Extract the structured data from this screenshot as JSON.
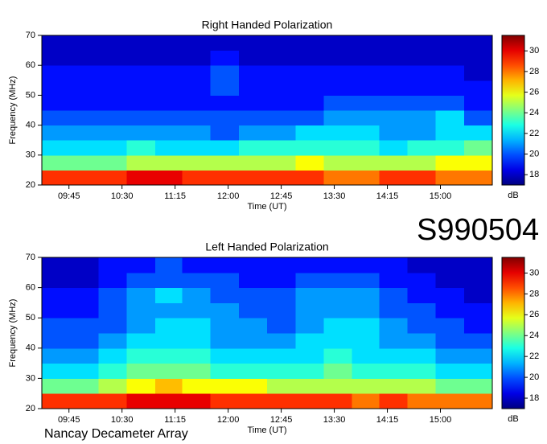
{
  "chart_data": [
    {
      "type": "heatmap",
      "title": "Right Handed Polarization",
      "x_label": "Time (UT)",
      "y_label": "Frequency (MHz)",
      "colorbar_label": "dB",
      "xlim": [
        562,
        944
      ],
      "xticks": [
        {
          "value": 585,
          "label": "09:45"
        },
        {
          "value": 630,
          "label": "10:30"
        },
        {
          "value": 675,
          "label": "11:15"
        },
        {
          "value": 720,
          "label": "12:00"
        },
        {
          "value": 765,
          "label": "12:45"
        },
        {
          "value": 810,
          "label": "13:30"
        },
        {
          "value": 855,
          "label": "14:15"
        },
        {
          "value": 900,
          "label": "15:00"
        }
      ],
      "ylim": [
        20,
        70
      ],
      "yticks": [
        20,
        30,
        40,
        50,
        60,
        70
      ],
      "zlim": [
        17,
        31.5
      ],
      "zticks": [
        18,
        20,
        22,
        24,
        26,
        28,
        30
      ],
      "colormap": "jet",
      "x": [
        574,
        598,
        622,
        646,
        670,
        693,
        717,
        741,
        765,
        789,
        813,
        837,
        860,
        884,
        908,
        932
      ],
      "y": [
        22.5,
        27.5,
        32.5,
        37.5,
        42.5,
        47.5,
        52.5,
        57.5,
        62.5,
        67.5
      ],
      "z": [
        [
          29,
          29,
          29,
          30,
          30,
          29,
          29,
          29,
          29,
          29,
          28,
          28,
          29,
          29,
          28,
          28
        ],
        [
          24,
          24,
          24,
          25,
          25,
          25,
          25,
          25,
          25,
          26,
          25,
          25,
          25,
          25,
          26,
          26
        ],
        [
          22,
          22,
          22,
          23,
          22,
          22,
          22,
          23,
          23,
          23,
          23,
          23,
          22,
          23,
          23,
          24
        ],
        [
          21,
          21,
          21,
          21,
          21,
          21,
          20,
          21,
          21,
          22,
          22,
          22,
          21,
          21,
          22,
          22
        ],
        [
          20,
          20,
          20,
          20,
          20,
          20,
          20,
          20,
          20,
          20,
          21,
          21,
          21,
          21,
          22,
          20
        ],
        [
          19,
          19,
          19,
          19,
          19,
          19,
          19,
          19,
          19,
          19,
          20,
          20,
          20,
          20,
          20,
          19
        ],
        [
          19,
          19,
          19,
          19,
          19,
          19,
          20,
          19,
          19,
          19,
          19,
          19,
          19,
          19,
          19,
          19
        ],
        [
          19,
          19,
          19,
          19,
          19,
          19,
          20,
          19,
          19,
          19,
          19,
          19,
          19,
          19,
          19,
          18
        ],
        [
          18,
          18,
          18,
          18,
          18,
          18,
          19,
          18,
          18,
          18,
          18,
          18,
          18,
          18,
          18,
          18
        ],
        [
          18,
          18,
          18,
          18,
          18,
          18,
          18,
          18,
          18,
          18,
          18,
          18,
          18,
          18,
          18,
          18
        ]
      ]
    },
    {
      "type": "heatmap",
      "title": "Left Handed Polarization",
      "x_label": "Time (UT)",
      "y_label": "Frequency (MHz)",
      "colorbar_label": "dB",
      "xlim": [
        562,
        944
      ],
      "xticks": [
        {
          "value": 585,
          "label": "09:45"
        },
        {
          "value": 630,
          "label": "10:30"
        },
        {
          "value": 675,
          "label": "11:15"
        },
        {
          "value": 720,
          "label": "12:00"
        },
        {
          "value": 765,
          "label": "12:45"
        },
        {
          "value": 810,
          "label": "13:30"
        },
        {
          "value": 855,
          "label": "14:15"
        },
        {
          "value": 900,
          "label": "15:00"
        }
      ],
      "ylim": [
        20,
        70
      ],
      "yticks": [
        20,
        30,
        40,
        50,
        60,
        70
      ],
      "zlim": [
        17,
        31.5
      ],
      "zticks": [
        18,
        20,
        22,
        24,
        26,
        28,
        30
      ],
      "colormap": "jet",
      "x": [
        574,
        598,
        622,
        646,
        670,
        693,
        717,
        741,
        765,
        789,
        813,
        837,
        860,
        884,
        908,
        932
      ],
      "y": [
        22.5,
        27.5,
        32.5,
        37.5,
        42.5,
        47.5,
        52.5,
        57.5,
        62.5,
        67.5
      ],
      "z": [
        [
          29,
          29,
          29,
          30,
          30,
          30,
          29,
          29,
          29,
          29,
          29,
          28,
          29,
          28,
          28,
          28
        ],
        [
          24,
          24,
          25,
          26,
          27,
          26,
          26,
          26,
          25,
          25,
          25,
          25,
          25,
          25,
          24,
          24
        ],
        [
          22,
          22,
          23,
          24,
          24,
          24,
          23,
          23,
          23,
          23,
          24,
          23,
          23,
          23,
          22,
          22
        ],
        [
          21,
          21,
          22,
          23,
          23,
          23,
          22,
          22,
          22,
          22,
          23,
          22,
          22,
          22,
          21,
          21
        ],
        [
          20,
          20,
          21,
          22,
          22,
          22,
          21,
          21,
          21,
          22,
          22,
          22,
          21,
          21,
          20,
          20
        ],
        [
          20,
          20,
          20,
          21,
          22,
          22,
          21,
          21,
          20,
          21,
          22,
          22,
          21,
          20,
          20,
          19
        ],
        [
          19,
          19,
          20,
          21,
          21,
          21,
          21,
          20,
          20,
          21,
          21,
          21,
          20,
          20,
          19,
          19
        ],
        [
          19,
          19,
          20,
          21,
          22,
          21,
          20,
          20,
          20,
          21,
          21,
          21,
          20,
          19,
          19,
          18
        ],
        [
          18,
          18,
          19,
          20,
          20,
          20,
          20,
          19,
          19,
          20,
          20,
          20,
          19,
          19,
          18,
          18
        ],
        [
          18,
          18,
          19,
          19,
          20,
          19,
          19,
          19,
          19,
          19,
          19,
          19,
          19,
          18,
          18,
          18
        ]
      ]
    }
  ],
  "code": "S990504",
  "footer": "Nancay Decameter Array"
}
